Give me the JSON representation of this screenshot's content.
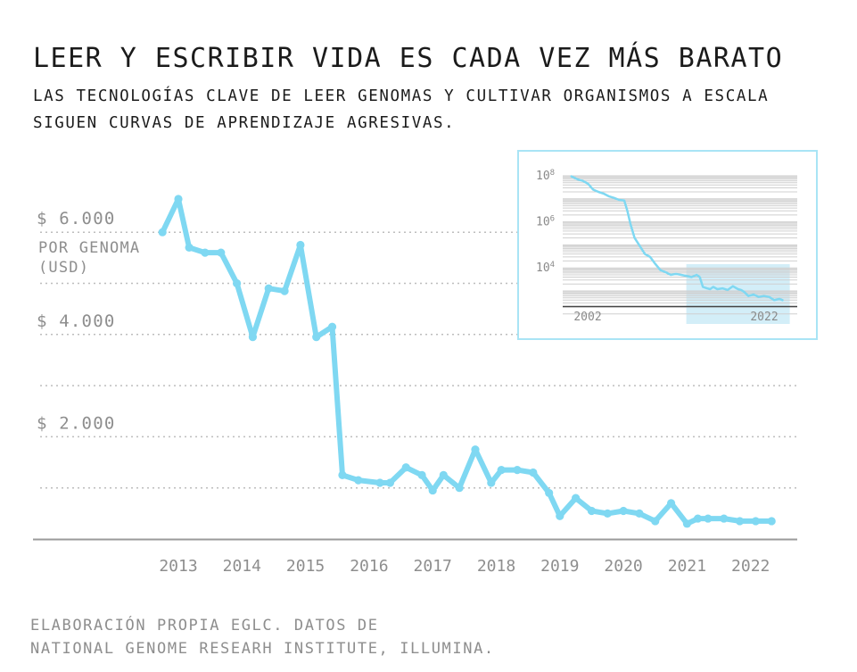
{
  "title": "LEER Y ESCRIBIR VIDA ES CADA VEZ MÁS BARATO",
  "subtitle": [
    "LAS TECNOLOGÍAS CLAVE DE LEER GENOMAS Y CULTIVAR ORGANISMOS A ESCALA",
    "SIGUEN CURVAS DE APRENDIZAJE AGRESIVAS."
  ],
  "source": [
    "ELABORACIÓN PROPIA EGLC. DATOS DE",
    "NATIONAL GENOME RESEARH INSTITUTE, ILLUMINA."
  ],
  "colors": {
    "line": "#7fd8f2",
    "grid": "#bdbdbd",
    "axis": "#9a9a9a",
    "text": "#8e8e8e",
    "inset_border": "#a9e4f5",
    "inset_highlight": "#d3eef8"
  },
  "chart_data": [
    {
      "type": "line",
      "title": "",
      "ylabel": "POR GENOMA (USD)",
      "y_ticks": [
        {
          "value": 6000,
          "label": "$ 6.000"
        },
        {
          "value": 4000,
          "label": "$ 4.000"
        },
        {
          "value": 2000,
          "label": "$ 2.000"
        }
      ],
      "y_gridlines": [
        6000,
        5000,
        4000,
        3000,
        2000,
        1000
      ],
      "ylim": [
        0,
        6700
      ],
      "xlim": [
        2012.5,
        2022.6
      ],
      "x_ticks": [
        "2013",
        "2014",
        "2015",
        "2016",
        "2017",
        "2018",
        "2019",
        "2020",
        "2021",
        "2022"
      ],
      "grid": true,
      "series": [
        {
          "x": [
            2012.75,
            2013.0,
            2013.17,
            2013.42,
            2013.67,
            2013.92,
            2014.17,
            2014.42,
            2014.67,
            2014.92,
            2015.17,
            2015.42,
            2015.58,
            2015.83,
            2016.17,
            2016.33,
            2016.58,
            2016.83,
            2017.0,
            2017.17,
            2017.42,
            2017.67,
            2017.92,
            2018.08,
            2018.33,
            2018.58,
            2018.83,
            2019.0,
            2019.25,
            2019.5,
            2019.75,
            2020.0,
            2020.25,
            2020.5,
            2020.75,
            2021.0,
            2021.17,
            2021.33,
            2021.58,
            2021.83,
            2022.08,
            2022.33
          ],
          "values": [
            6000,
            6650,
            5700,
            5600,
            5600,
            5000,
            3950,
            4900,
            4850,
            5750,
            3950,
            4150,
            1250,
            1150,
            1100,
            1100,
            1400,
            1250,
            950,
            1250,
            1000,
            1750,
            1100,
            1350,
            1350,
            1300,
            900,
            450,
            800,
            550,
            500,
            550,
            500,
            350,
            700,
            300,
            400,
            400,
            400,
            350,
            350,
            350
          ]
        }
      ]
    },
    {
      "type": "line",
      "scale": "log",
      "y_ticks": [
        {
          "value": 100000000,
          "base": "10",
          "exp": "8"
        },
        {
          "value": 1000000,
          "base": "10",
          "exp": "6"
        },
        {
          "value": 10000,
          "base": "10",
          "exp": "4"
        }
      ],
      "ylim": [
        100,
        100000000
      ],
      "xlim": [
        2001,
        2023
      ],
      "x_ticks": [
        "2002",
        "2022"
      ],
      "highlight_range": [
        2013,
        2023
      ],
      "grid": true,
      "series": [
        {
          "x": [
            2001.9,
            2002.5,
            2003.0,
            2003.5,
            2004.0,
            2004.5,
            2005.0,
            2005.5,
            2006.0,
            2006.5,
            2007.0,
            2007.3,
            2007.6,
            2008.0,
            2008.5,
            2009.0,
            2009.5,
            2010.0,
            2010.5,
            2011.0,
            2011.5,
            2012.0,
            2012.5,
            2013.0,
            2013.5,
            2014.0,
            2014.3,
            2014.6,
            2015.0,
            2015.3,
            2015.6,
            2016.0,
            2016.5,
            2017.0,
            2017.5,
            2018.0,
            2018.3,
            2018.6,
            2019.0,
            2019.5,
            2020.0,
            2020.5,
            2021.0,
            2021.5,
            2022.0,
            2022.3
          ],
          "values": [
            95000000,
            70000000,
            60000000,
            45000000,
            25000000,
            20000000,
            17000000,
            13000000,
            11000000,
            9000000,
            8500000,
            3000000,
            800000,
            200000,
            90000,
            40000,
            30000,
            15000,
            8000,
            6500,
            5000,
            5500,
            5000,
            4500,
            4000,
            5000,
            4000,
            1500,
            1300,
            1200,
            1500,
            1200,
            1300,
            1100,
            1600,
            1200,
            1100,
            900,
            600,
            700,
            550,
            600,
            550,
            400,
            450,
            400
          ]
        }
      ]
    }
  ]
}
